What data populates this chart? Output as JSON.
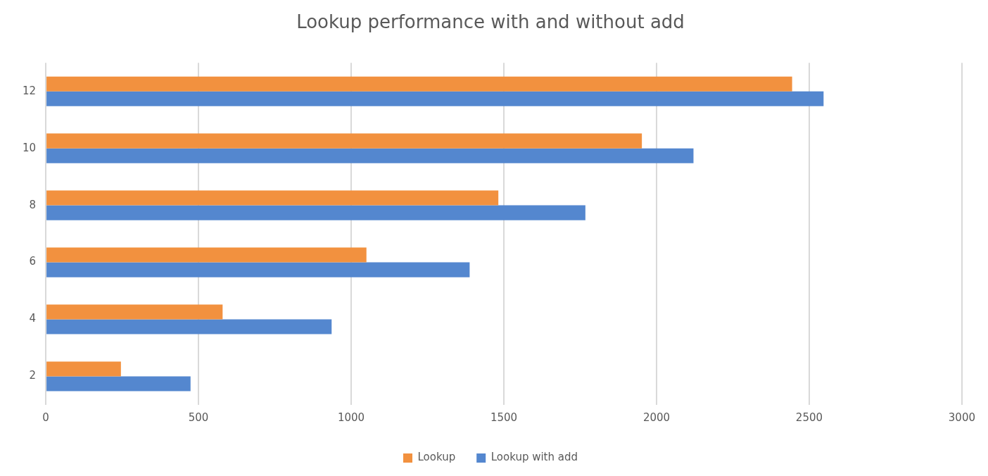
{
  "chart_data": {
    "type": "bar",
    "orientation": "horizontal",
    "title": "Lookup performance with and without add",
    "categories": [
      "12",
      "10",
      "8",
      "6",
      "4",
      "2"
    ],
    "series": [
      {
        "name": "Lookup",
        "color": "#f2913f",
        "values": [
          2444,
          1952,
          1482,
          1050,
          579,
          246
        ]
      },
      {
        "name": "Lookup with add",
        "color": "#5487cf",
        "values": [
          2547,
          2121,
          1767,
          1388,
          936,
          474
        ]
      }
    ],
    "xlim": [
      0,
      3000
    ],
    "xticks": [
      0,
      500,
      1000,
      1500,
      2000,
      2500,
      3000
    ],
    "grid": "x",
    "legend": "bottom"
  }
}
